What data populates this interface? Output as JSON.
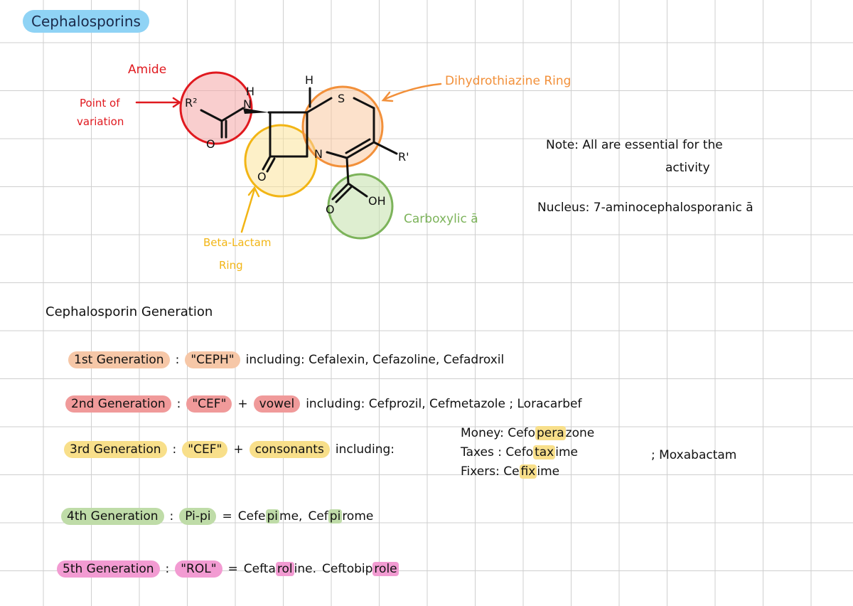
{
  "title": "Cephalosporins",
  "structure": {
    "amide": "Amide",
    "point_of_variation_1": "Point of",
    "point_of_variation_2": "variation",
    "r2": "R²",
    "nh_h": "H",
    "nh_n": "N",
    "top_h": "H",
    "s_atom": "S",
    "n_atom": "N",
    "o_lactam": "O",
    "o_amide": "O",
    "r1": "R'",
    "oh": "OH",
    "o_carboxyl": "O",
    "dihydrothiazine": "Dihydrothiazine Ring",
    "beta_lactam_1": "Beta-Lactam",
    "beta_lactam_2": "Ring",
    "carboxylic": "Carboxylic ā"
  },
  "note": {
    "line1": "Note:  All are essential for the",
    "line2": "activity",
    "nucleus": "Nucleus:  7-aminocephalosporanic ā"
  },
  "generation_heading": "Cephalosporin Generation",
  "generations": {
    "g1": {
      "label": "1st Generation",
      "sep": ":",
      "key": "\"CEPH\"",
      "including": "including: Cefalexin, Cefazoline, Cefadroxil"
    },
    "g2": {
      "label": "2nd Generation",
      "sep": ":",
      "key": "\"CEF\"",
      "plus": "+",
      "extra": "vowel",
      "including": "including: Cefprozil, Cefmetazole ; Loracarbef"
    },
    "g3": {
      "label": "3rd Generation",
      "sep": ":",
      "key": "\"CEF\"",
      "plus": "+",
      "extra": "consonants",
      "including": "including:",
      "examples": [
        {
          "pre": "Money: Cefo",
          "mark": "pera",
          "post": "zone"
        },
        {
          "pre": "Taxes : Cefo",
          "mark": "tax",
          "post": "ime"
        },
        {
          "pre": "Fixers: Ce",
          "mark": "fix",
          "post": "ime"
        }
      ],
      "other": "; Moxabactam"
    },
    "g4": {
      "label": "4th Generation",
      "sep": ":",
      "key": "Pi-pi",
      "eq": "=",
      "ex1_pre": "Cefe",
      "ex1_mark": "pi",
      "ex1_post": "me,",
      "ex2_pre": "Cef",
      "ex2_mark": "pi",
      "ex2_post": "rome"
    },
    "g5": {
      "label": "5th Generation",
      "sep": ":",
      "key": "\"ROL\"",
      "eq": "=",
      "ex1_pre": "Cefta",
      "ex1_mark": "rol",
      "ex1_post": "ine.",
      "ex2_pre": "Ceftobip",
      "ex2_mark": "role",
      "ex2_post": ""
    }
  },
  "colors": {
    "red": "#e0191f",
    "orange": "#f2903a",
    "yellow": "#f2b515",
    "green": "#7cb35a",
    "title_bg": "#8fd3f5"
  }
}
